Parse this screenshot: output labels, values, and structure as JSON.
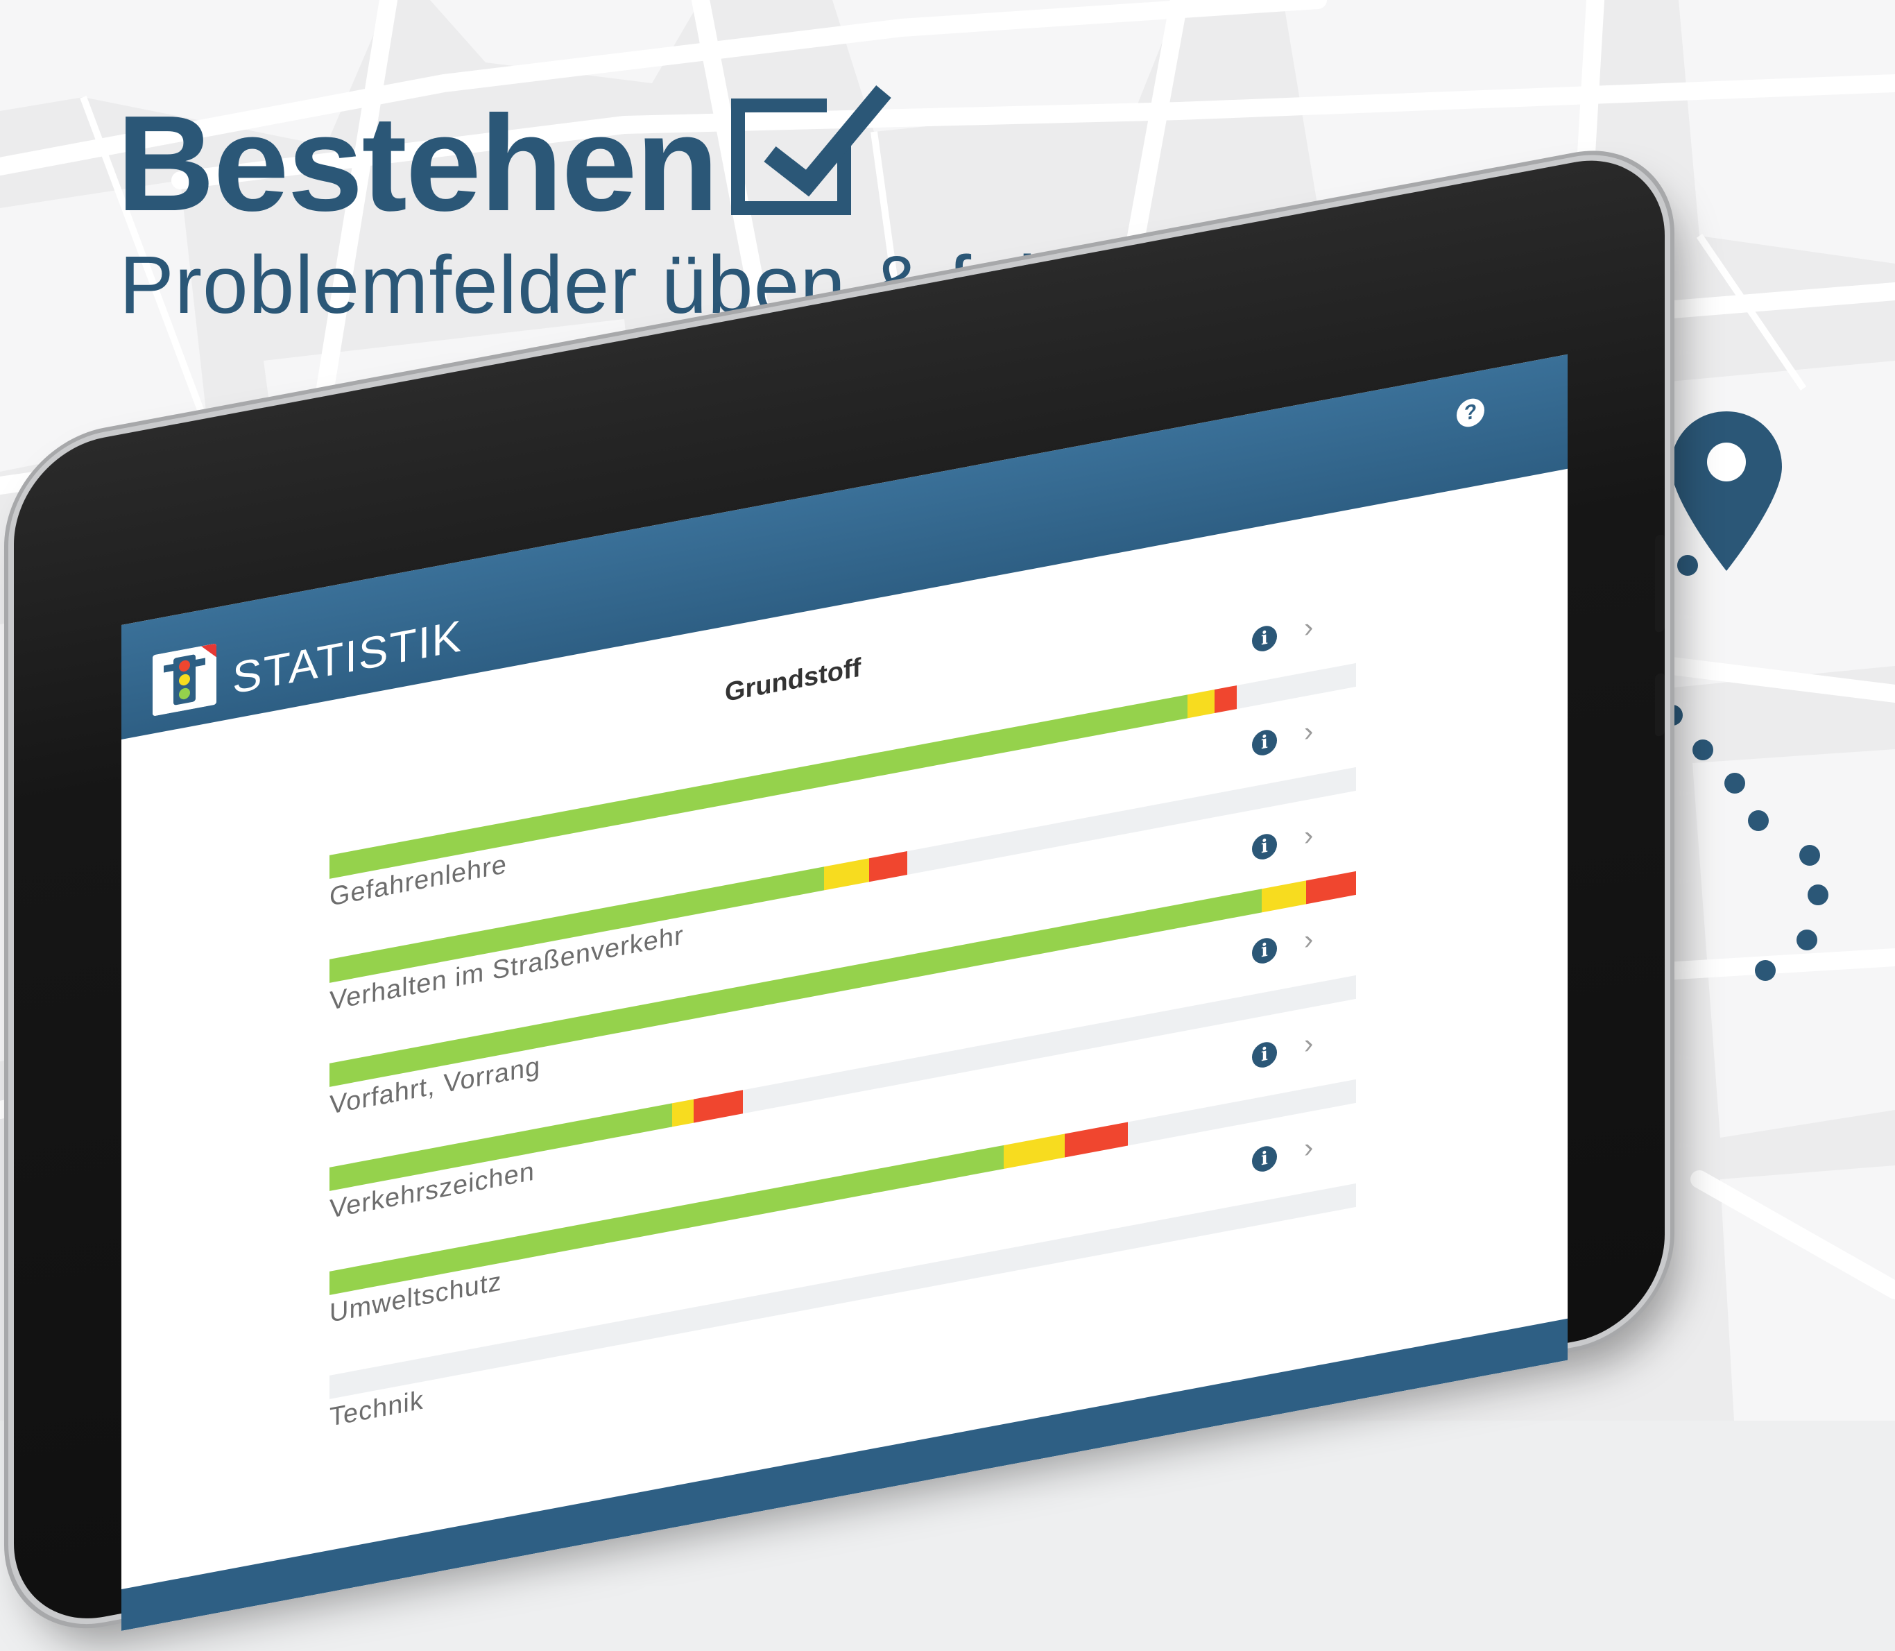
{
  "headline": "Bestehen",
  "subline": "Problemfelder üben & fehlerfrei bestehen",
  "icons": {
    "checkbox": "checkbox-checked-icon",
    "pin": "map-pin-icon",
    "help": "help-icon",
    "info": "info-icon",
    "chevron": "chevron-right-icon",
    "logo": "traffic-light-icon"
  },
  "colors": {
    "brand": "#2b5777",
    "header": "#3a7098",
    "green": "#95d24c",
    "yellow": "#f7dc1f",
    "red": "#f0462f",
    "track": "#eef0f2"
  },
  "app": {
    "title": "STATISTIK",
    "help_glyph": "?",
    "section": "Grundstoff",
    "info_glyph": "i",
    "chevron_glyph": "›"
  },
  "stats": [
    {
      "label": "Gefahrenlehre",
      "green": 0.836,
      "yellow": 0.026,
      "red": 0.022
    },
    {
      "label": "Verhalten im Straßenverkehr",
      "green": 0.482,
      "yellow": 0.044,
      "red": 0.037
    },
    {
      "label": "Vorfahrt, Vorrang",
      "green": 0.928,
      "yellow": 0.044,
      "red": 0.05
    },
    {
      "label": "Verkehrszeichen",
      "green": 0.334,
      "yellow": 0.021,
      "red": 0.048
    },
    {
      "label": "Umweltschutz",
      "green": 0.657,
      "yellow": 0.059,
      "red": 0.062
    },
    {
      "label": "Technik",
      "green": 0.0,
      "yellow": 0.0,
      "red": 0.0
    }
  ]
}
